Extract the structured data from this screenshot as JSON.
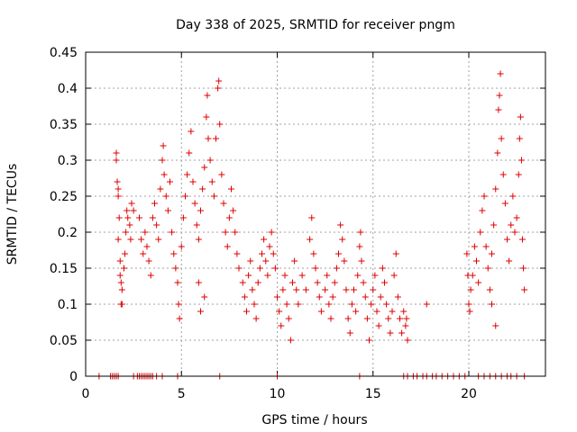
{
  "chart_data": {
    "type": "scatter",
    "title": "Day 338 of 2025, SRMTID for receiver pngm",
    "xlabel": "GPS time / hours",
    "ylabel": "SRMTID / TECUs",
    "xlim": [
      0,
      24
    ],
    "ylim": [
      0,
      0.45
    ],
    "grid": true,
    "marker": "+",
    "marker_color": "#dd0000",
    "x_ticks": [
      0,
      5,
      10,
      15,
      20
    ],
    "x_tick_labels": [
      "0",
      "5",
      "10",
      "15",
      "20"
    ],
    "y_ticks": [
      0,
      0.05,
      0.1,
      0.15,
      0.2,
      0.25,
      0.3,
      0.35,
      0.4,
      0.45
    ],
    "y_tick_labels": [
      "0",
      "0.05",
      "0.1",
      "0.15",
      "0.2",
      "0.25",
      "0.3",
      "0.35",
      "0.4",
      "0.45"
    ],
    "series": [
      {
        "name": "SRMTID",
        "points": [
          [
            1.6,
            0.31
          ],
          [
            1.6,
            0.3
          ],
          [
            1.65,
            0.27
          ],
          [
            1.7,
            0.26
          ],
          [
            1.7,
            0.25
          ],
          [
            1.75,
            0.22
          ],
          [
            1.7,
            0.19
          ],
          [
            1.8,
            0.16
          ],
          [
            1.8,
            0.14
          ],
          [
            1.85,
            0.13
          ],
          [
            1.9,
            0.12
          ],
          [
            1.85,
            0.1
          ],
          [
            1.9,
            0.1
          ],
          [
            2.0,
            0.15
          ],
          [
            2.05,
            0.17
          ],
          [
            2.1,
            0.2
          ],
          [
            2.15,
            0.23
          ],
          [
            2.2,
            0.22
          ],
          [
            2.3,
            0.21
          ],
          [
            2.35,
            0.19
          ],
          [
            2.4,
            0.24
          ],
          [
            2.5,
            0.23
          ],
          [
            2.8,
            0.22
          ],
          [
            2.9,
            0.19
          ],
          [
            3.0,
            0.17
          ],
          [
            3.1,
            0.2
          ],
          [
            3.2,
            0.18
          ],
          [
            3.3,
            0.16
          ],
          [
            3.4,
            0.14
          ],
          [
            3.5,
            0.22
          ],
          [
            3.6,
            0.24
          ],
          [
            3.7,
            0.21
          ],
          [
            3.8,
            0.19
          ],
          [
            3.9,
            0.26
          ],
          [
            4.0,
            0.3
          ],
          [
            4.05,
            0.32
          ],
          [
            4.1,
            0.28
          ],
          [
            4.2,
            0.25
          ],
          [
            4.3,
            0.23
          ],
          [
            4.4,
            0.27
          ],
          [
            4.5,
            0.2
          ],
          [
            4.6,
            0.17
          ],
          [
            4.7,
            0.15
          ],
          [
            4.8,
            0.13
          ],
          [
            4.85,
            0.1
          ],
          [
            4.9,
            0.08
          ],
          [
            5.0,
            0.18
          ],
          [
            5.1,
            0.22
          ],
          [
            5.2,
            0.25
          ],
          [
            5.3,
            0.28
          ],
          [
            5.4,
            0.31
          ],
          [
            5.5,
            0.34
          ],
          [
            5.6,
            0.27
          ],
          [
            5.7,
            0.24
          ],
          [
            5.8,
            0.21
          ],
          [
            5.9,
            0.19
          ],
          [
            6.0,
            0.23
          ],
          [
            6.1,
            0.26
          ],
          [
            6.2,
            0.29
          ],
          [
            6.3,
            0.36
          ],
          [
            6.35,
            0.39
          ],
          [
            6.4,
            0.33
          ],
          [
            6.5,
            0.3
          ],
          [
            6.6,
            0.27
          ],
          [
            6.7,
            0.25
          ],
          [
            6.8,
            0.33
          ],
          [
            6.9,
            0.4
          ],
          [
            6.95,
            0.41
          ],
          [
            7.0,
            0.35
          ],
          [
            7.1,
            0.28
          ],
          [
            7.2,
            0.24
          ],
          [
            7.3,
            0.2
          ],
          [
            7.4,
            0.18
          ],
          [
            7.5,
            0.22
          ],
          [
            7.6,
            0.26
          ],
          [
            7.7,
            0.23
          ],
          [
            7.8,
            0.2
          ],
          [
            7.9,
            0.17
          ],
          [
            8.0,
            0.15
          ],
          [
            6.0,
            0.09
          ],
          [
            6.2,
            0.11
          ],
          [
            5.9,
            0.13
          ],
          [
            8.2,
            0.13
          ],
          [
            8.3,
            0.11
          ],
          [
            8.4,
            0.09
          ],
          [
            8.5,
            0.14
          ],
          [
            8.6,
            0.16
          ],
          [
            8.7,
            0.12
          ],
          [
            8.8,
            0.1
          ],
          [
            8.9,
            0.08
          ],
          [
            9.0,
            0.13
          ],
          [
            9.1,
            0.15
          ],
          [
            9.2,
            0.17
          ],
          [
            9.3,
            0.19
          ],
          [
            9.4,
            0.16
          ],
          [
            9.5,
            0.14
          ],
          [
            9.6,
            0.18
          ],
          [
            9.7,
            0.2
          ],
          [
            9.8,
            0.17
          ],
          [
            9.9,
            0.15
          ],
          [
            10.0,
            0.11
          ],
          [
            10.1,
            0.09
          ],
          [
            10.2,
            0.07
          ],
          [
            10.3,
            0.12
          ],
          [
            10.4,
            0.14
          ],
          [
            10.5,
            0.1
          ],
          [
            10.6,
            0.08
          ],
          [
            10.7,
            0.05
          ],
          [
            10.8,
            0.13
          ],
          [
            10.9,
            0.16
          ],
          [
            11.0,
            0.12
          ],
          [
            11.1,
            0.1
          ],
          [
            11.3,
            0.14
          ],
          [
            11.5,
            0.12
          ],
          [
            11.7,
            0.19
          ],
          [
            11.8,
            0.22
          ],
          [
            11.9,
            0.17
          ],
          [
            12.0,
            0.15
          ],
          [
            12.1,
            0.13
          ],
          [
            12.2,
            0.11
          ],
          [
            12.3,
            0.09
          ],
          [
            12.5,
            0.12
          ],
          [
            12.6,
            0.14
          ],
          [
            12.7,
            0.1
          ],
          [
            12.8,
            0.08
          ],
          [
            12.9,
            0.11
          ],
          [
            13.0,
            0.13
          ],
          [
            13.1,
            0.15
          ],
          [
            13.2,
            0.17
          ],
          [
            13.3,
            0.21
          ],
          [
            13.4,
            0.19
          ],
          [
            13.5,
            0.16
          ],
          [
            13.6,
            0.12
          ],
          [
            13.7,
            0.08
          ],
          [
            13.8,
            0.06
          ],
          [
            13.9,
            0.1
          ],
          [
            14.0,
            0.12
          ],
          [
            14.1,
            0.09
          ],
          [
            14.2,
            0.14
          ],
          [
            14.3,
            0.18
          ],
          [
            14.35,
            0.2
          ],
          [
            14.4,
            0.16
          ],
          [
            14.5,
            0.13
          ],
          [
            14.6,
            0.11
          ],
          [
            14.7,
            0.08
          ],
          [
            14.8,
            0.05
          ],
          [
            14.9,
            0.1
          ],
          [
            15.0,
            0.12
          ],
          [
            15.1,
            0.14
          ],
          [
            15.2,
            0.09
          ],
          [
            15.3,
            0.07
          ],
          [
            15.4,
            0.11
          ],
          [
            15.5,
            0.15
          ],
          [
            15.6,
            0.13
          ],
          [
            15.7,
            0.1
          ],
          [
            15.8,
            0.08
          ],
          [
            15.9,
            0.06
          ],
          [
            16.0,
            0.09
          ],
          [
            16.1,
            0.14
          ],
          [
            16.2,
            0.17
          ],
          [
            16.3,
            0.11
          ],
          [
            16.4,
            0.08
          ],
          [
            16.5,
            0.06
          ],
          [
            16.6,
            0.09
          ],
          [
            16.7,
            0.07
          ],
          [
            16.8,
            0.05
          ],
          [
            16.75,
            0.08
          ],
          [
            17.8,
            0.1
          ],
          [
            19.9,
            0.17
          ],
          [
            19.95,
            0.14
          ],
          [
            20.0,
            0.1
          ],
          [
            20.05,
            0.09
          ],
          [
            20.1,
            0.12
          ],
          [
            20.2,
            0.14
          ],
          [
            20.3,
            0.18
          ],
          [
            20.4,
            0.16
          ],
          [
            20.5,
            0.13
          ],
          [
            20.6,
            0.2
          ],
          [
            20.7,
            0.23
          ],
          [
            20.8,
            0.25
          ],
          [
            20.9,
            0.18
          ],
          [
            21.0,
            0.15
          ],
          [
            21.1,
            0.12
          ],
          [
            21.2,
            0.17
          ],
          [
            21.3,
            0.21
          ],
          [
            21.4,
            0.26
          ],
          [
            21.5,
            0.31
          ],
          [
            21.55,
            0.37
          ],
          [
            21.6,
            0.39
          ],
          [
            21.65,
            0.42
          ],
          [
            21.7,
            0.33
          ],
          [
            21.8,
            0.28
          ],
          [
            21.9,
            0.24
          ],
          [
            22.0,
            0.19
          ],
          [
            22.1,
            0.16
          ],
          [
            22.2,
            0.21
          ],
          [
            22.3,
            0.25
          ],
          [
            22.4,
            0.2
          ],
          [
            22.5,
            0.22
          ],
          [
            22.6,
            0.28
          ],
          [
            22.65,
            0.33
          ],
          [
            22.7,
            0.36
          ],
          [
            22.75,
            0.3
          ],
          [
            22.8,
            0.19
          ],
          [
            22.85,
            0.15
          ],
          [
            22.9,
            0.12
          ],
          [
            21.4,
            0.07
          ],
          [
            21.2,
            0.1
          ]
        ]
      }
    ],
    "zero_points_x": [
      0.7,
      1.3,
      1.4,
      1.5,
      1.6,
      1.7,
      2.5,
      2.7,
      2.8,
      2.9,
      3.0,
      3.1,
      3.2,
      3.3,
      3.4,
      3.5,
      3.7,
      4.0,
      4.8,
      7.0,
      10.0,
      14.3,
      16.6,
      16.8,
      17.1,
      17.3,
      17.6,
      17.8,
      18.1,
      18.3,
      18.6,
      18.9,
      19.2,
      19.5,
      19.8,
      20.5,
      20.8,
      21.1,
      21.4,
      21.7,
      22.0,
      22.2,
      22.5,
      22.9
    ]
  }
}
